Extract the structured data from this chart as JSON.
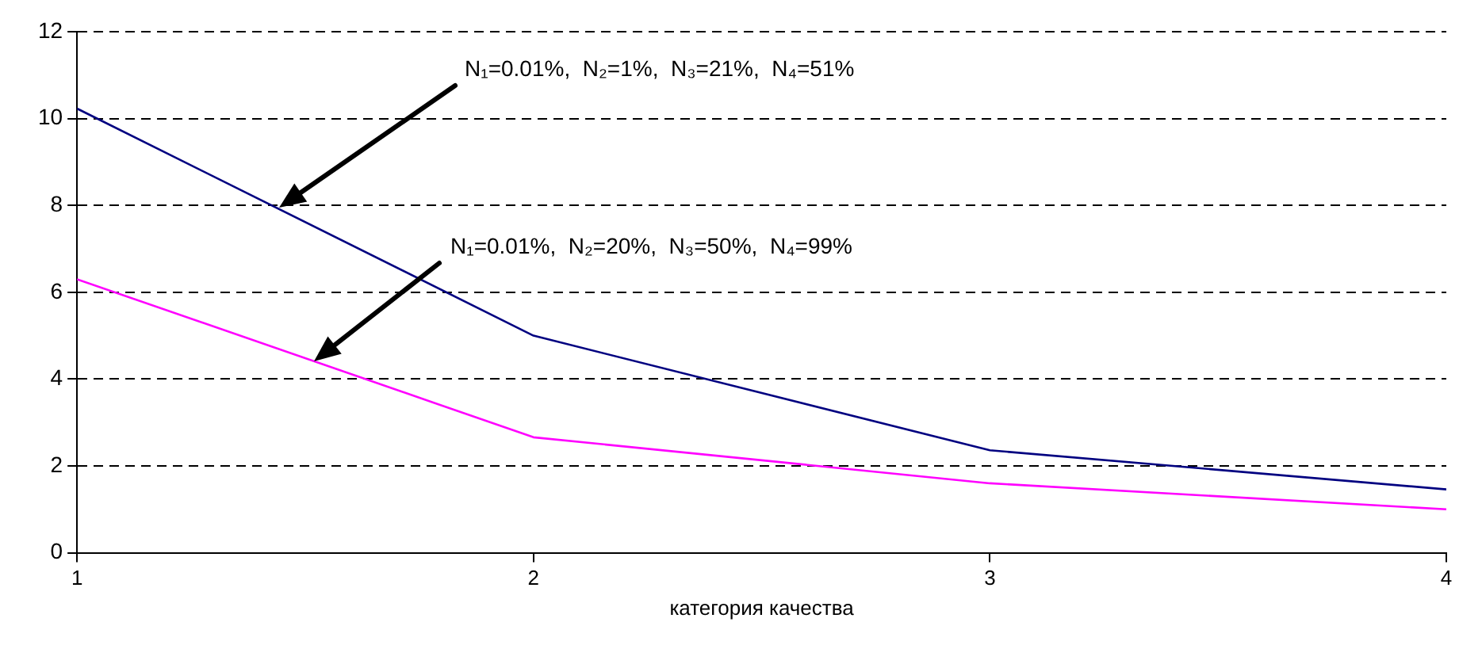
{
  "chart_data": {
    "type": "line",
    "xlabel": "категория качества",
    "x": [
      1,
      2,
      3,
      4
    ],
    "series": [
      {
        "color": "#000080",
        "values": [
          10.23,
          5.0,
          2.36,
          1.46
        ]
      },
      {
        "color": "#ff00ff",
        "values": [
          6.3,
          2.66,
          1.6,
          1.0
        ]
      }
    ],
    "xlim": [
      1,
      4
    ],
    "xticks": [
      1,
      2,
      3,
      4
    ],
    "ylim": [
      0,
      12
    ],
    "yticks": [
      0,
      2,
      4,
      6,
      8,
      10,
      12
    ],
    "grid": "y",
    "legend": false,
    "marker": "none",
    "line_style": "solid",
    "annotations": [
      "N₁=0.01%,  N₂=1%,  N₃=21%,  N₄=51%",
      "N₁=0.01%,  N₂=20%,  N₃=50%,  N₄=99%"
    ]
  }
}
